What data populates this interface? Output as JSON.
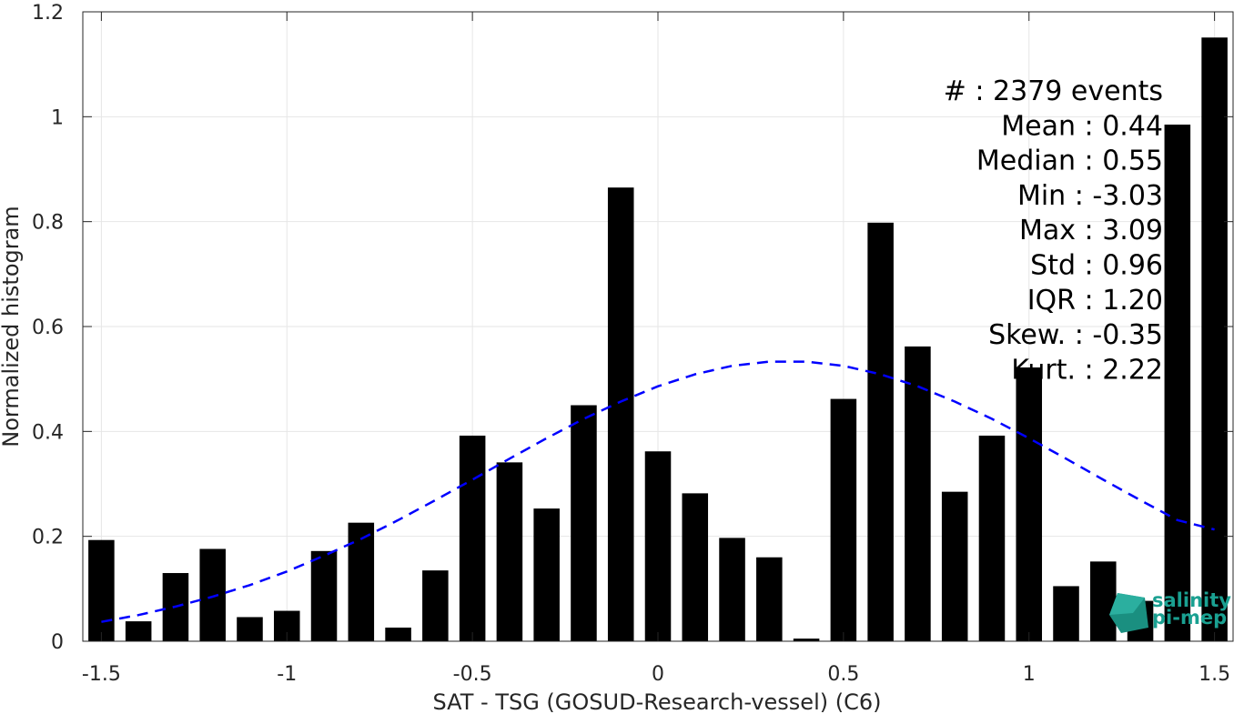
{
  "chart_data": {
    "type": "bar",
    "xlabel": "SAT - TSG (GOSUD-Research-vessel) (C6)",
    "ylabel": "Normalized histogram",
    "xlim": [
      -1.55,
      1.55
    ],
    "ylim": [
      0,
      1.2
    ],
    "xticks": [
      "-1.5",
      "-1",
      "-0.5",
      "0",
      "0.5",
      "1",
      "1.5"
    ],
    "xtick_values": [
      -1.5,
      -1,
      -0.5,
      0,
      0.5,
      1,
      1.5
    ],
    "yticks": [
      "0",
      "0.2",
      "0.4",
      "0.6",
      "0.8",
      "1",
      "1.2"
    ],
    "ytick_values": [
      0,
      0.2,
      0.4,
      0.6,
      0.8,
      1.0,
      1.2
    ],
    "grid": true,
    "bar_color": "#000000",
    "bar_width": 0.07,
    "x": [
      -1.5,
      -1.4,
      -1.3,
      -1.2,
      -1.1,
      -1.0,
      -0.9,
      -0.8,
      -0.7,
      -0.6,
      -0.5,
      -0.4,
      -0.3,
      -0.2,
      -0.1,
      0.0,
      0.1,
      0.2,
      0.3,
      0.4,
      0.5,
      0.6,
      0.7,
      0.8,
      0.9,
      1.0,
      1.1,
      1.2,
      1.3,
      1.4,
      1.5
    ],
    "values": [
      0.193,
      0.038,
      0.13,
      0.176,
      0.046,
      0.058,
      0.172,
      0.226,
      0.026,
      0.135,
      0.392,
      0.341,
      0.253,
      0.45,
      0.865,
      0.362,
      0.282,
      0.197,
      0.16,
      0.005,
      0.462,
      0.798,
      0.562,
      0.285,
      0.392,
      0.522,
      0.105,
      0.152,
      0.077,
      0.985,
      1.151
    ],
    "fit_curve": {
      "color": "#0000ff",
      "style": "dashed",
      "x": [
        -1.5,
        -1.4,
        -1.3,
        -1.2,
        -1.1,
        -1.0,
        -0.9,
        -0.8,
        -0.7,
        -0.6,
        -0.5,
        -0.4,
        -0.3,
        -0.2,
        -0.1,
        0.0,
        0.1,
        0.2,
        0.3,
        0.4,
        0.5,
        0.6,
        0.7,
        0.8,
        0.9,
        1.0,
        1.1,
        1.2,
        1.3,
        1.4,
        1.5
      ],
      "y": [
        0.037,
        0.05,
        0.066,
        0.085,
        0.107,
        0.133,
        0.163,
        0.195,
        0.231,
        0.269,
        0.308,
        0.348,
        0.387,
        0.424,
        0.457,
        0.486,
        0.509,
        0.525,
        0.533,
        0.533,
        0.525,
        0.509,
        0.486,
        0.457,
        0.424,
        0.387,
        0.348,
        0.308,
        0.269,
        0.231,
        0.213
      ]
    },
    "annotations": [
      "#  : 2379 events",
      "Mean : 0.44",
      "Median : 0.55",
      "Min : -3.03",
      "Max : 3.09",
      "Std : 0.96",
      "IQR : 1.20",
      "Skew. : -0.35",
      "Kurt. : 2.22"
    ]
  },
  "logo": {
    "line1": "salinity",
    "line2": "pi-mep"
  }
}
